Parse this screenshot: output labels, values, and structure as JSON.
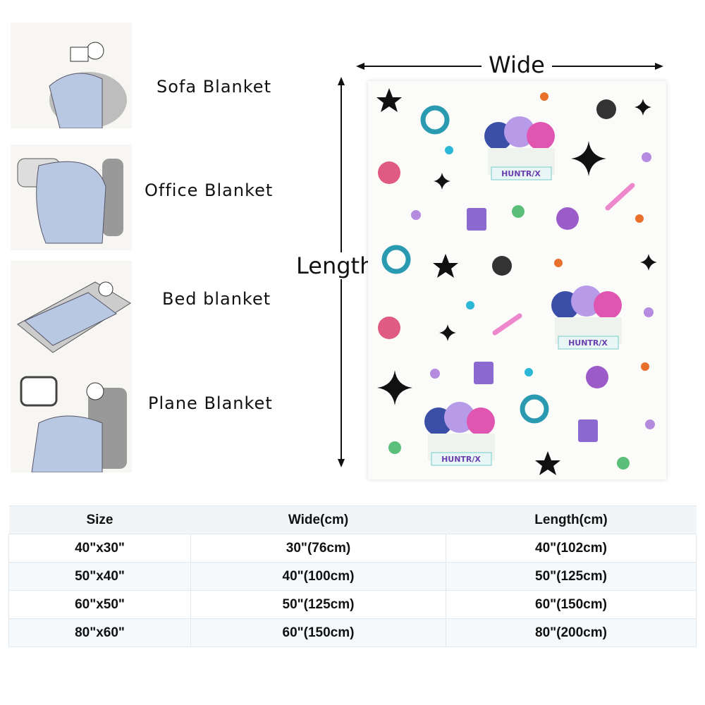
{
  "usages": [
    {
      "label": "Sofa Blanket"
    },
    {
      "label": "Office Blanket"
    },
    {
      "label": "Bed blanket"
    },
    {
      "label": "Plane Blanket"
    }
  ],
  "dimensions": {
    "wide": "Wide",
    "length": "Length"
  },
  "blanket": {
    "logo_text": "HUNTR/X",
    "colors": {
      "blue": "#b9c8e2",
      "star_orange": "#e8702a",
      "star_teal": "#2bb7d6",
      "purple": "#b58be0"
    }
  },
  "size_table": {
    "headers": [
      "Size",
      "Wide(cm)",
      "Length(cm)"
    ],
    "rows": [
      [
        "40\"x30\"",
        "30\"(76cm)",
        "40\"(102cm)"
      ],
      [
        "50\"x40\"",
        "40\"(100cm)",
        "50\"(125cm)"
      ],
      [
        "60\"x50\"",
        "50\"(125cm)",
        "60\"(150cm)"
      ],
      [
        "80\"x60\"",
        "60\"(150cm)",
        "80\"(200cm)"
      ]
    ]
  }
}
